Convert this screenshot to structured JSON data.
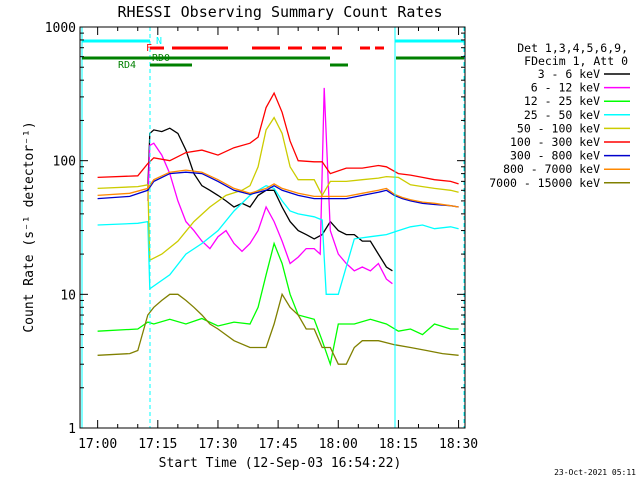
{
  "chart_data": {
    "type": "line",
    "title": "RHESSI Observing Summary Count Rates",
    "xlabel": "Start Time (12-Sep-03 16:54:22)",
    "ylabel": "Count Rate (s⁻¹ detector⁻¹)",
    "yscale": "log",
    "ylim": [
      1,
      1000
    ],
    "xlim_minutes": [
      -4.4,
      91.6
    ],
    "x_ticks": [
      {
        "label": "17:00",
        "minute": 0
      },
      {
        "label": "17:15",
        "minute": 15
      },
      {
        "label": "17:30",
        "minute": 30
      },
      {
        "label": "17:45",
        "minute": 45
      },
      {
        "label": "18:00",
        "minute": 60
      },
      {
        "label": "18:15",
        "minute": 75
      },
      {
        "label": "18:30",
        "minute": 90
      }
    ],
    "y_ticks": [
      {
        "label": "1",
        "value": 1
      },
      {
        "label": "10",
        "value": 10
      },
      {
        "label": "100",
        "value": 100
      },
      {
        "label": "1000",
        "value": 1000
      }
    ],
    "legend_header": [
      "Det 1,3,4,5,6,9,",
      "FDecim 1, Att 0"
    ],
    "series": [
      {
        "name": "3 - 6 keV",
        "color": "#000000",
        "x": [
          12.5,
          13,
          14,
          16,
          18,
          20,
          22,
          24,
          26,
          28,
          30,
          32,
          34,
          36,
          38,
          40,
          42,
          44,
          46,
          48,
          50,
          52,
          54,
          56,
          58,
          60,
          62,
          64,
          66,
          68,
          70,
          72,
          73.5
        ],
        "values": [
          60,
          160,
          170,
          165,
          175,
          160,
          120,
          80,
          65,
          60,
          55,
          50,
          45,
          48,
          45,
          55,
          60,
          60,
          45,
          35,
          30,
          28,
          26,
          28,
          35,
          30,
          28,
          28,
          25,
          25,
          20,
          16,
          15
        ]
      },
      {
        "name": "6 - 12 keV",
        "color": "#ff00ff",
        "x": [
          12.5,
          13,
          14,
          16,
          18,
          20,
          22,
          24,
          26,
          28,
          30,
          32,
          34,
          36,
          38,
          40,
          42,
          44,
          46,
          48,
          50,
          52,
          54,
          55.5,
          56.5,
          58,
          60,
          62,
          64,
          66,
          68,
          70,
          72,
          73.5
        ],
        "values": [
          50,
          130,
          135,
          110,
          80,
          50,
          35,
          30,
          25,
          22,
          27,
          30,
          24,
          21,
          24,
          30,
          45,
          35,
          25,
          17,
          19,
          22,
          22,
          20,
          350,
          30,
          20,
          17,
          15,
          16,
          15,
          17,
          13,
          12
        ]
      },
      {
        "name": "12 - 25 keV",
        "color": "#00ff00",
        "x": [
          0,
          10,
          12.5,
          14,
          18,
          22,
          26,
          30,
          34,
          38,
          40,
          42,
          44,
          46,
          48,
          50,
          54,
          56,
          58,
          60,
          64,
          68,
          72,
          75,
          78,
          81,
          84,
          88,
          90
        ],
        "values": [
          5.3,
          5.5,
          6.2,
          6,
          6.5,
          6,
          6.6,
          5.8,
          6.2,
          6,
          8,
          14,
          24,
          17,
          10,
          7,
          6.5,
          4.5,
          3,
          6,
          6,
          6.5,
          6,
          5.3,
          5.5,
          5,
          6,
          5.5,
          5.5
        ]
      },
      {
        "name": "25 - 50 keV",
        "color": "#00ffff",
        "x": [
          0,
          10,
          12.5,
          13,
          18,
          22,
          26,
          30,
          34,
          38,
          40,
          42,
          44,
          46,
          48,
          50,
          54,
          56,
          57,
          60,
          64,
          68,
          72,
          75,
          78,
          81,
          84,
          88,
          90
        ],
        "values": [
          33,
          34,
          35,
          11,
          14,
          20,
          24,
          30,
          42,
          55,
          60,
          65,
          62,
          50,
          42,
          40,
          38,
          36,
          10,
          10,
          26,
          27,
          28,
          30,
          32,
          33,
          31,
          32,
          31
        ]
      },
      {
        "name": "50 - 100 keV",
        "color": "#cccc00",
        "x": [
          0,
          10,
          12.5,
          13,
          16,
          20,
          24,
          28,
          32,
          36,
          38,
          40,
          42,
          44,
          46,
          48,
          50,
          54,
          56,
          58,
          62,
          66,
          70,
          72,
          75,
          78,
          81,
          84,
          88,
          90
        ],
        "values": [
          62,
          64,
          66,
          18,
          20,
          25,
          35,
          45,
          55,
          60,
          65,
          90,
          170,
          210,
          160,
          90,
          72,
          72,
          55,
          70,
          70,
          72,
          74,
          76,
          75,
          66,
          64,
          62,
          60,
          58
        ]
      },
      {
        "name": "100 - 300 keV",
        "color": "#ff0000",
        "x": [
          0,
          10,
          12.5,
          14,
          18,
          22,
          26,
          30,
          34,
          38,
          40,
          42,
          44,
          46,
          48,
          50,
          54,
          56,
          58,
          62,
          66,
          70,
          72,
          75,
          78,
          81,
          84,
          88,
          90
        ],
        "values": [
          75,
          77,
          95,
          105,
          100,
          115,
          120,
          110,
          125,
          135,
          150,
          250,
          320,
          230,
          140,
          100,
          98,
          98,
          80,
          88,
          88,
          92,
          90,
          80,
          78,
          75,
          72,
          70,
          67
        ]
      },
      {
        "name": "300 - 800 keV",
        "color": "#0000cc",
        "x": [
          0,
          8,
          12.5,
          14,
          18,
          22,
          26,
          30,
          34,
          38,
          42,
          44,
          46,
          50,
          54,
          58,
          62,
          66,
          70,
          72,
          74,
          76,
          78,
          81,
          84,
          88,
          90
        ],
        "values": [
          52,
          54,
          60,
          70,
          80,
          82,
          80,
          70,
          60,
          56,
          60,
          65,
          60,
          55,
          52,
          52,
          52,
          55,
          58,
          60,
          55,
          52,
          50,
          48,
          47,
          46,
          45
        ]
      },
      {
        "name": "800 - 7000 keV",
        "color": "#ff8800",
        "x": [
          0,
          8,
          12.5,
          14,
          18,
          22,
          26,
          30,
          34,
          38,
          42,
          44,
          46,
          50,
          54,
          58,
          62,
          66,
          70,
          72,
          74,
          76,
          78,
          81,
          84,
          88,
          90
        ],
        "values": [
          55,
          57,
          62,
          72,
          82,
          85,
          82,
          72,
          62,
          57,
          62,
          67,
          62,
          57,
          54,
          54,
          54,
          57,
          60,
          62,
          56,
          53,
          51,
          49,
          48,
          46,
          45
        ]
      },
      {
        "name": "7000 - 15000 keV",
        "color": "#808000",
        "x": [
          0,
          8,
          10,
          12.5,
          14,
          16,
          18,
          20,
          22,
          24,
          26,
          28,
          30,
          34,
          38,
          42,
          44,
          46,
          48,
          50,
          52,
          54,
          56,
          58,
          60,
          62,
          64,
          66,
          70,
          74,
          78,
          82,
          86,
          90
        ],
        "values": [
          3.5,
          3.6,
          3.8,
          7,
          8,
          9,
          10,
          10,
          9,
          8,
          7,
          6,
          5.5,
          4.5,
          4,
          4,
          6,
          10,
          8,
          7,
          5.5,
          5.5,
          4,
          4,
          3,
          3,
          4,
          4.5,
          4.5,
          4.2,
          4,
          3.8,
          3.6,
          3.5
        ]
      }
    ],
    "top_bars": [
      {
        "label": "N",
        "color": "#00ffff"
      },
      {
        "label": "F",
        "color": "#ff0000"
      },
      {
        "label": "RD0",
        "color": "#008000"
      },
      {
        "label": "RD4",
        "color": "#008000"
      }
    ],
    "footer_date": "23-Oct-2021 05:11"
  }
}
